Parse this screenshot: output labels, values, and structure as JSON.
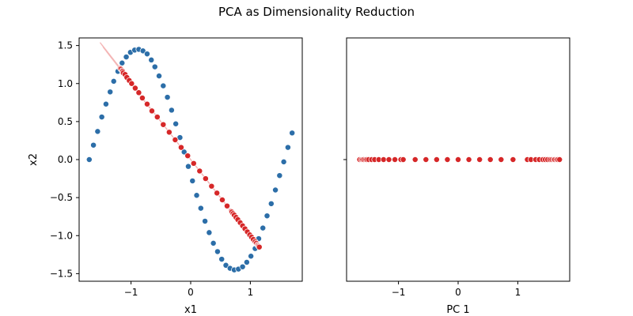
{
  "figure": {
    "title": "PCA as Dimensionality Reduction",
    "colors": {
      "original": "#2c6ea8",
      "projected": "#d62728",
      "projection_line": "#f4b6b6"
    }
  },
  "chart_data": [
    {
      "type": "scatter",
      "name": "left-panel",
      "xlabel": "x1",
      "ylabel": "x2",
      "xlim": [
        -1.87,
        1.87
      ],
      "ylim": [
        -1.6,
        1.6
      ],
      "xticks": [
        -1,
        0,
        1
      ],
      "xtick_labels": [
        "−1",
        "0",
        "1"
      ],
      "yticks": [
        -1.5,
        -1.0,
        -0.5,
        0.0,
        0.5,
        1.0,
        1.5
      ],
      "ytick_labels": [
        "−1.5",
        "−1.0",
        "−0.5",
        "0.0",
        "0.5",
        "1.0",
        "1.5"
      ],
      "grid": false,
      "series": [
        {
          "role": "original",
          "x": [
            -1.7,
            -1.63,
            -1.56,
            -1.49,
            -1.42,
            -1.35,
            -1.29,
            -1.22,
            -1.15,
            -1.08,
            -1.01,
            -0.94,
            -0.87,
            -0.8,
            -0.73,
            -0.66,
            -0.6,
            -0.53,
            -0.46,
            -0.39,
            -0.32,
            -0.25,
            -0.18,
            -0.11,
            -0.04,
            0.03,
            0.1,
            0.17,
            0.24,
            0.31,
            0.38,
            0.45,
            0.52,
            0.59,
            0.66,
            0.73,
            0.8,
            0.87,
            0.94,
            1.01,
            1.08,
            1.14,
            1.21,
            1.28,
            1.35,
            1.42,
            1.49,
            1.56,
            1.63,
            1.7
          ],
          "y": [
            0.0,
            0.19,
            0.37,
            0.56,
            0.73,
            0.89,
            1.03,
            1.16,
            1.27,
            1.35,
            1.41,
            1.44,
            1.45,
            1.43,
            1.39,
            1.31,
            1.22,
            1.1,
            0.97,
            0.82,
            0.65,
            0.47,
            0.29,
            0.1,
            -0.09,
            -0.28,
            -0.47,
            -0.64,
            -0.81,
            -0.96,
            -1.1,
            -1.21,
            -1.31,
            -1.39,
            -1.43,
            -1.45,
            -1.44,
            -1.41,
            -1.35,
            -1.27,
            -1.17,
            -1.04,
            -0.9,
            -0.74,
            -0.58,
            -0.4,
            -0.21,
            -0.03,
            0.16,
            0.35
          ]
        },
        {
          "role": "projected",
          "x": [
            -1.18,
            -1.17,
            -1.15,
            -1.14,
            -1.13,
            -1.1,
            -1.07,
            -1.03,
            -0.99,
            -0.93,
            -0.87,
            -0.81,
            -0.73,
            -0.65,
            -0.56,
            -0.46,
            -0.36,
            -0.26,
            -0.16,
            -0.05,
            0.05,
            0.15,
            0.25,
            0.35,
            0.44,
            0.53,
            0.61,
            0.68,
            0.69,
            0.71,
            0.73,
            0.76,
            0.79,
            0.83,
            0.87,
            0.91,
            0.95,
            0.99,
            1.02,
            1.05,
            1.08,
            1.1,
            1.12,
            1.13,
            1.14,
            1.15
          ],
          "y": [
            1.2,
            1.19,
            1.17,
            1.16,
            1.14,
            1.12,
            1.08,
            1.04,
            1.0,
            0.94,
            0.88,
            0.81,
            0.73,
            0.64,
            0.56,
            0.46,
            0.36,
            0.26,
            0.16,
            0.05,
            -0.05,
            -0.15,
            -0.25,
            -0.35,
            -0.44,
            -0.53,
            -0.61,
            -0.68,
            -0.69,
            -0.71,
            -0.73,
            -0.76,
            -0.79,
            -0.83,
            -0.87,
            -0.91,
            -0.95,
            -0.99,
            -1.02,
            -1.05,
            -1.08,
            -1.1,
            -1.12,
            -1.13,
            -1.14,
            -1.15
          ]
        }
      ]
    },
    {
      "type": "scatter",
      "name": "right-panel",
      "xlabel": "PC 1",
      "ylabel": "",
      "xlim": [
        -1.87,
        1.87
      ],
      "ylim": [
        -1.6,
        1.6
      ],
      "xticks": [
        -1,
        0,
        1
      ],
      "xtick_labels": [
        "−1",
        "0",
        "1"
      ],
      "yticks": [
        0.0
      ],
      "ytick_labels": [
        ""
      ],
      "grid": false,
      "series": [
        {
          "role": "projected",
          "x": [
            -1.65,
            -1.62,
            -1.6,
            -1.58,
            -1.55,
            -1.53,
            -1.5,
            -1.45,
            -1.4,
            -1.33,
            -1.25,
            -1.16,
            -1.06,
            -0.96,
            -0.92,
            -0.72,
            -0.54,
            -0.36,
            -0.18,
            0.0,
            0.18,
            0.36,
            0.54,
            0.72,
            0.92,
            1.16,
            1.22,
            1.3,
            1.36,
            1.42,
            1.46,
            1.5,
            1.54,
            1.57,
            1.6,
            1.62,
            1.65,
            1.67,
            1.7
          ],
          "y": [
            0,
            0,
            0,
            0,
            0,
            0,
            0,
            0,
            0,
            0,
            0,
            0,
            0,
            0,
            0,
            0,
            0,
            0,
            0,
            0,
            0,
            0,
            0,
            0,
            0,
            0,
            0,
            0,
            0,
            0,
            0,
            0,
            0,
            0,
            0,
            0,
            0,
            0,
            0
          ]
        }
      ]
    }
  ]
}
